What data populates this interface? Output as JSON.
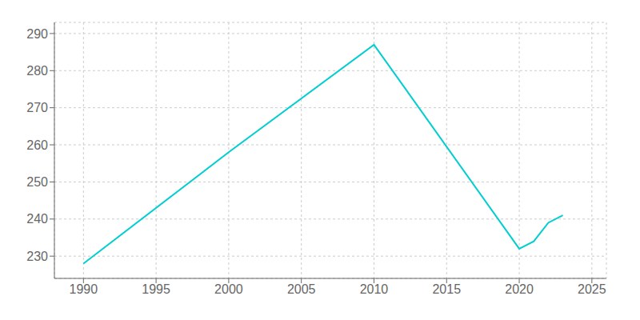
{
  "chart_data": {
    "type": "line",
    "x": [
      1990,
      2000,
      2010,
      2020,
      2021,
      2022,
      2023
    ],
    "values": [
      228,
      258,
      287,
      232,
      234,
      239,
      241
    ],
    "color": "#00CED1",
    "xlim": [
      1988,
      2026
    ],
    "ylim": [
      224,
      293
    ],
    "xticks": [
      1990,
      1995,
      2000,
      2005,
      2010,
      2015,
      2020,
      2025
    ],
    "yticks": [
      230,
      240,
      250,
      260,
      270,
      280,
      290
    ],
    "grid": true
  }
}
